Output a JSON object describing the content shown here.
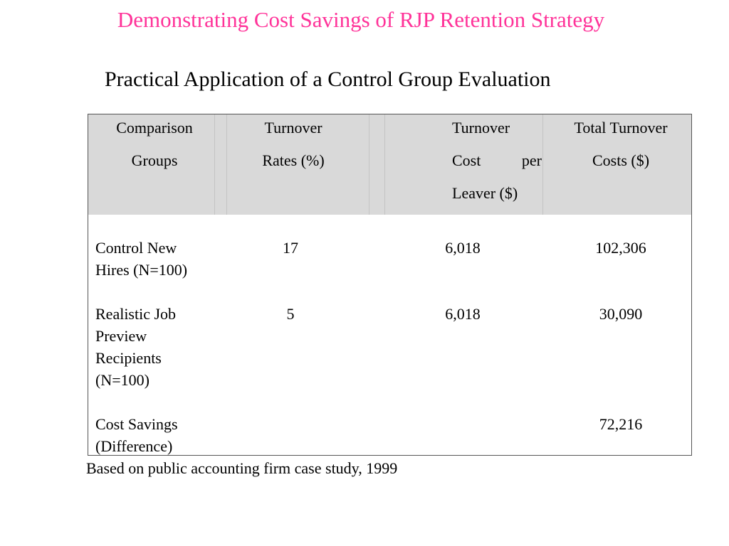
{
  "slide": {
    "title": "Demonstrating Cost Savings of RJP Retention Strategy",
    "title_color": "#ff3399",
    "subtitle": "Practical Application of a Control Group Evaluation",
    "footnote": "Based on public accounting firm case study, 1999"
  },
  "table": {
    "header_bg": "#d9d9d9",
    "headers": {
      "col1": [
        "Comparison",
        "Groups"
      ],
      "col2": [
        "Turnover",
        "Rates (%)"
      ],
      "col3": [
        "Turnover",
        "Cost",
        "per",
        "Leaver ($)"
      ],
      "col4": [
        "Total Turnover",
        "Costs ($)"
      ]
    },
    "rows": [
      {
        "group": [
          "Control New",
          "Hires (N=100)"
        ],
        "rate": "17",
        "cost_per_leaver": "6,018",
        "total": "102,306"
      },
      {
        "group": [
          "Realistic Job",
          "Preview",
          "Recipients",
          "(N=100)"
        ],
        "rate": "5",
        "cost_per_leaver": "6,018",
        "total": "30,090"
      },
      {
        "group": [
          "Cost Savings",
          "(Difference)"
        ],
        "rate": "",
        "cost_per_leaver": "",
        "total": "72,216"
      }
    ]
  }
}
